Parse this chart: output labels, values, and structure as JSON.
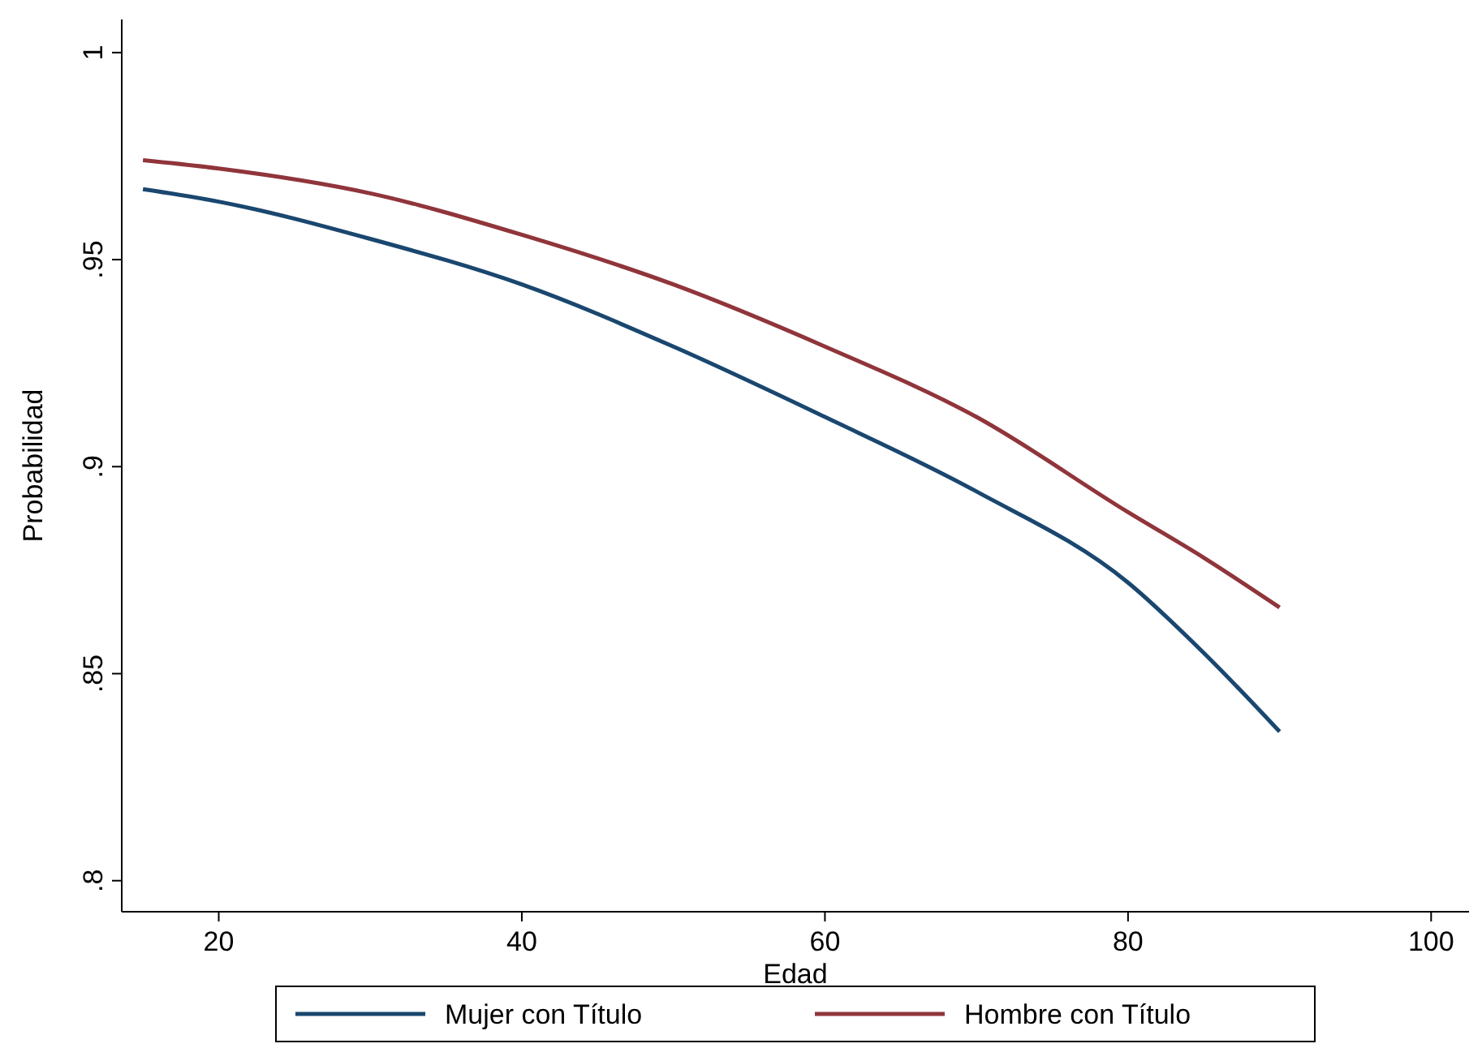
{
  "chart_data": {
    "type": "line",
    "xlabel": "Edad",
    "ylabel": "Probabilidad",
    "x": [
      15,
      20,
      30,
      40,
      50,
      60,
      70,
      80,
      85,
      90
    ],
    "series": [
      {
        "name": "Mujer con Título",
        "color": "#1a476f",
        "values": [
          0.967,
          0.964,
          0.955,
          0.944,
          0.929,
          0.912,
          0.894,
          0.872,
          0.855,
          0.836
        ]
      },
      {
        "name": "Hombre con Título",
        "color": "#90353b",
        "values": [
          0.974,
          0.972,
          0.966,
          0.956,
          0.944,
          0.929,
          0.912,
          0.889,
          0.878,
          0.866
        ]
      }
    ],
    "xlim": [
      13.6,
      102.5
    ],
    "ylim": [
      0.7925,
      1.008
    ],
    "xticks": [
      20,
      40,
      60,
      80,
      100
    ],
    "yticks": [
      {
        "value": 0.8,
        "label": ".8"
      },
      {
        "value": 0.85,
        "label": ".85"
      },
      {
        "value": 0.9,
        "label": ".9"
      },
      {
        "value": 0.95,
        "label": ".95"
      },
      {
        "value": 1,
        "label": "1"
      }
    ],
    "legend": "bottom",
    "marker": "none",
    "line_style": "solid",
    "grid": false
  }
}
